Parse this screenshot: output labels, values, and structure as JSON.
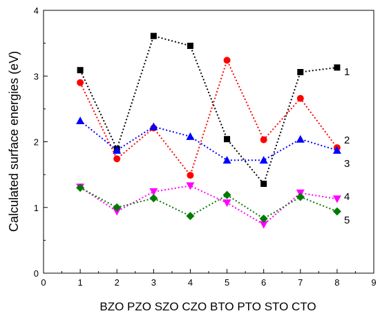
{
  "chart_data": {
    "type": "scatter",
    "xlabel": "BZO PZO SZO CZO BTO PTO STO CTO",
    "ylabel": "Calculated surface energies (eV)",
    "xlim": [
      0,
      9
    ],
    "ylim": [
      0,
      4
    ],
    "xticks": [
      0,
      1,
      2,
      3,
      4,
      5,
      6,
      7,
      8,
      9
    ],
    "yticks": [
      0,
      1,
      2,
      3,
      4
    ],
    "grid": false,
    "series": [
      {
        "name": "1",
        "color": "#000000",
        "marker": "square",
        "x": [
          1,
          2,
          3,
          4,
          5,
          6,
          7,
          8
        ],
        "values": [
          3.09,
          1.89,
          3.61,
          3.46,
          2.04,
          1.36,
          3.06,
          3.13
        ]
      },
      {
        "name": "",
        "color": "#ff0000",
        "marker": "circle",
        "x": [
          1,
          2,
          3,
          4,
          5,
          6,
          7,
          8
        ],
        "values": [
          2.9,
          1.74,
          2.21,
          1.49,
          3.24,
          2.03,
          2.66,
          1.91
        ]
      },
      {
        "name": "2",
        "color": "#0000ff",
        "marker": "triangle-up",
        "x": [
          1,
          2,
          3,
          4,
          5,
          6,
          7,
          8
        ],
        "values": [
          2.32,
          1.87,
          2.23,
          2.08,
          1.72,
          1.72,
          2.04,
          1.87
        ]
      },
      {
        "name": "3",
        "color": "#0000ff",
        "marker": "none",
        "x": [],
        "values": []
      },
      {
        "name": "4",
        "color": "#ff00ff",
        "marker": "triangle-down",
        "x": [
          1,
          2,
          3,
          4,
          5,
          6,
          7,
          8
        ],
        "values": [
          1.31,
          0.94,
          1.24,
          1.33,
          1.07,
          0.74,
          1.22,
          1.13
        ]
      },
      {
        "name": "5",
        "color": "#007a00",
        "marker": "diamond",
        "x": [
          1,
          2,
          3,
          4,
          5,
          6,
          7,
          8
        ],
        "values": [
          1.3,
          1.0,
          1.14,
          0.87,
          1.19,
          0.83,
          1.16,
          0.94
        ]
      }
    ]
  }
}
